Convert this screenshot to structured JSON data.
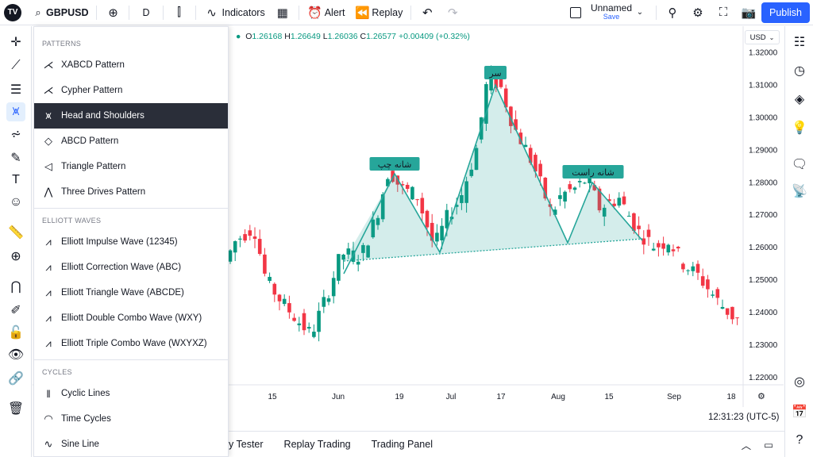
{
  "topbar": {
    "symbol": "GBPUSD",
    "interval": "D",
    "indicators_label": "Indicators",
    "alert_label": "Alert",
    "replay_label": "Replay",
    "layout_name": "Unnamed",
    "save_label": "Save",
    "publish_label": "Publish"
  },
  "legend": {
    "open_label": "O",
    "open": "1.26168",
    "high_label": "H",
    "high": "1.26649",
    "low_label": "L",
    "low": "1.26036",
    "close_label": "C",
    "close": "1.26577",
    "change": "+0.00409 (+0.32%)"
  },
  "currency": "USD",
  "clock": "12:31:23 (UTC-5)",
  "dropdown": {
    "patterns_header": "PATTERNS",
    "patterns": [
      {
        "label": "XABCD Pattern",
        "icon": "xabcd-pattern-icon"
      },
      {
        "label": "Cypher Pattern",
        "icon": "cypher-pattern-icon"
      },
      {
        "label": "Head and Shoulders",
        "icon": "head-and-shoulders-icon",
        "active": true
      },
      {
        "label": "ABCD Pattern",
        "icon": "abcd-pattern-icon"
      },
      {
        "label": "Triangle Pattern",
        "icon": "triangle-pattern-icon"
      },
      {
        "label": "Three Drives Pattern",
        "icon": "three-drives-pattern-icon"
      }
    ],
    "elliott_header": "ELLIOTT WAVES",
    "elliott": [
      {
        "label": "Elliott Impulse Wave (12345)",
        "icon": "elliott-impulse-icon"
      },
      {
        "label": "Elliott Correction Wave (ABC)",
        "icon": "elliott-correction-icon"
      },
      {
        "label": "Elliott Triangle Wave (ABCDE)",
        "icon": "elliott-triangle-icon"
      },
      {
        "label": "Elliott Double Combo Wave (WXY)",
        "icon": "elliott-double-combo-icon"
      },
      {
        "label": "Elliott Triple Combo Wave (WXYXZ)",
        "icon": "elliott-triple-combo-icon"
      }
    ],
    "cycles_header": "CYCLES",
    "cycles": [
      {
        "label": "Cyclic Lines",
        "icon": "cyclic-lines-icon"
      },
      {
        "label": "Time Cycles",
        "icon": "time-cycles-icon"
      },
      {
        "label": "Sine Line",
        "icon": "sine-line-icon"
      }
    ]
  },
  "bottom_tabs": [
    "y Tester",
    "Replay Trading",
    "Trading Panel"
  ],
  "pattern_labels": {
    "left_shoulder": "شانه چپ",
    "head": "سر",
    "right_shoulder": "شانه راست"
  },
  "colors": {
    "up": "#089981",
    "down": "#f23645",
    "pattern": "#26a69a",
    "accent": "#2962ff"
  },
  "chart_data": {
    "type": "candlestick",
    "price_axis_ticks": [
      "1.32000",
      "1.31000",
      "1.30000",
      "1.29000",
      "1.28000",
      "1.27000",
      "1.26000",
      "1.25000",
      "1.24000",
      "1.23000",
      "1.22000"
    ],
    "time_axis_ticks": [
      "15",
      "Jun",
      "19",
      "Jul",
      "17",
      "Aug",
      "15",
      "Sep",
      "18"
    ],
    "ylim": [
      1.218,
      1.326
    ]
  }
}
